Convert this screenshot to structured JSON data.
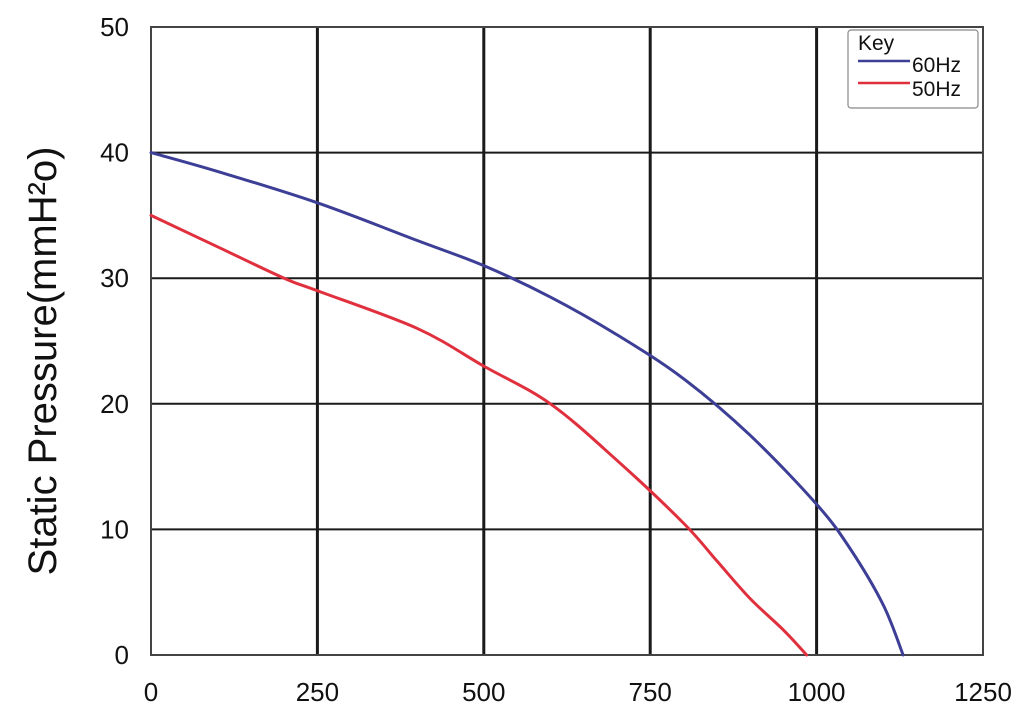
{
  "chart_data": {
    "type": "line",
    "title": "",
    "xlabel": "",
    "ylabel": "Static Pressure(mmH²o)",
    "xlim": [
      0,
      1250
    ],
    "ylim": [
      0,
      50
    ],
    "xticks": [
      "0",
      "250",
      "500",
      "750",
      "1000",
      "1250"
    ],
    "yticks": [
      "0",
      "10",
      "20",
      "30",
      "40",
      "50"
    ],
    "grid": true,
    "legend": {
      "title": "Key",
      "placement": "top-right",
      "entries": [
        "60Hz",
        "50Hz"
      ]
    },
    "series": [
      {
        "name": "60Hz",
        "color": "#3d3f97",
        "x": [
          0,
          100,
          250,
          400,
          500,
          600,
          700,
          800,
          900,
          1000,
          1050,
          1100,
          1130
        ],
        "y": [
          40,
          38.5,
          36,
          33,
          31,
          28.5,
          25.5,
          22,
          17.5,
          12,
          8.5,
          4,
          0
        ]
      },
      {
        "name": "50Hz",
        "color": "#e0303e",
        "x": [
          0,
          100,
          200,
          250,
          400,
          500,
          600,
          700,
          800,
          850,
          900,
          950,
          985
        ],
        "y": [
          35,
          32.5,
          30,
          29,
          26,
          23,
          20,
          15.5,
          10.5,
          7.5,
          4.5,
          2,
          0
        ]
      }
    ]
  }
}
